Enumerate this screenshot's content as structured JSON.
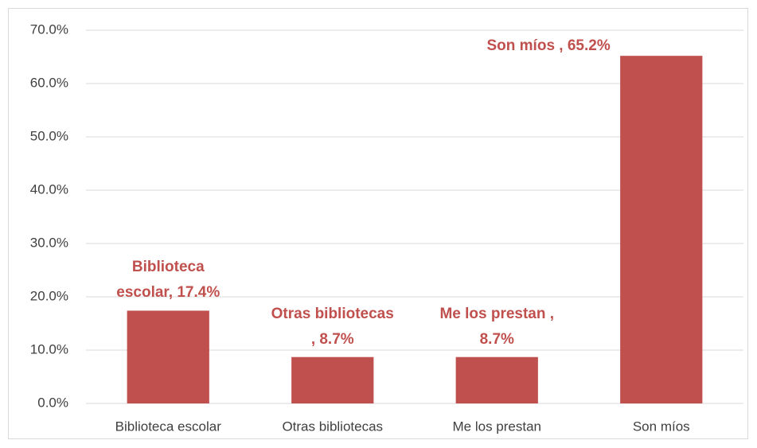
{
  "chart_data": {
    "type": "bar",
    "categories": [
      "Biblioteca escolar",
      "Otras bibliotecas",
      "Me los prestan",
      "Son míos"
    ],
    "values": [
      17.4,
      8.7,
      8.7,
      65.2
    ],
    "value_labels": [
      "Biblioteca escolar, 17.4%",
      "Otras bibliotecas , 8.7%",
      "Me los prestan , 8.7%",
      "Son míos , 65.2%"
    ],
    "color": "#c0504d",
    "ylim": [
      0,
      70
    ],
    "yticks": [
      {
        "value": 0,
        "label": "0.0%"
      },
      {
        "value": 10,
        "label": "10.0%"
      },
      {
        "value": 20,
        "label": "20.0%"
      },
      {
        "value": 30,
        "label": "30.0%"
      },
      {
        "value": 40,
        "label": "40.0%"
      },
      {
        "value": 50,
        "label": "50.0%"
      },
      {
        "value": 60,
        "label": "60.0%"
      },
      {
        "value": 70,
        "label": "70.0%"
      }
    ],
    "grid": true
  }
}
